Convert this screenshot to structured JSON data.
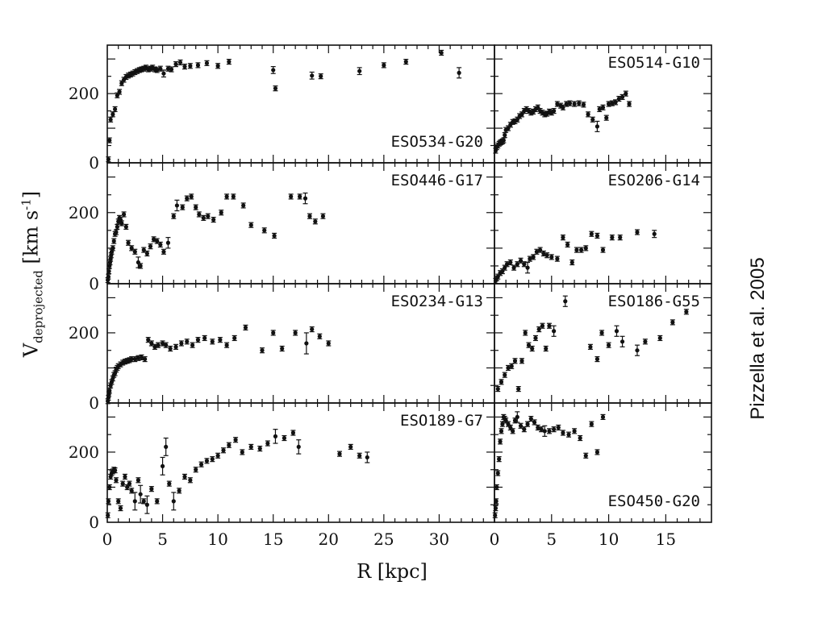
{
  "credit": "Pizzella et al. 2005",
  "axis": {
    "xlabel": "R [kpc]",
    "ylabel_main": "V",
    "ylabel_sub": "deprojected",
    "ylabel_units_a": " [km s",
    "ylabel_units_sup": "-1",
    "ylabel_units_b": "]"
  },
  "chart_data": [
    {
      "type": "scatter",
      "title": "ESO534-G20",
      "xlim": [
        0,
        35
      ],
      "ylim": [
        0,
        340
      ],
      "xticks": [
        0,
        5,
        10,
        15,
        20,
        25,
        30
      ],
      "yticks": [
        0,
        200
      ],
      "x": [
        0.1,
        0.2,
        0.3,
        0.5,
        0.7,
        0.9,
        1.1,
        1.3,
        1.5,
        1.7,
        1.9,
        2.1,
        2.3,
        2.5,
        2.7,
        2.9,
        3.1,
        3.3,
        3.5,
        3.7,
        3.9,
        4.1,
        4.3,
        4.5,
        4.8,
        5.1,
        5.5,
        5.8,
        6.2,
        6.6,
        7.0,
        7.5,
        8.2,
        9.0,
        10.0,
        11.0,
        15.0,
        15.2,
        18.5,
        19.3,
        22.8,
        25.0,
        27.0,
        30.2,
        31.8
      ],
      "y": [
        10,
        65,
        125,
        140,
        155,
        195,
        205,
        230,
        240,
        248,
        252,
        255,
        258,
        262,
        265,
        268,
        270,
        272,
        275,
        270,
        272,
        275,
        270,
        268,
        272,
        258,
        272,
        270,
        285,
        290,
        278,
        280,
        282,
        288,
        280,
        292,
        268,
        215,
        252,
        250,
        265,
        282,
        292,
        318,
        260
      ],
      "err": [
        0,
        0,
        0,
        0,
        0,
        0,
        0,
        0,
        0,
        0,
        0,
        0,
        0,
        0,
        0,
        0,
        0,
        0,
        0,
        0,
        0,
        0,
        0,
        0,
        0,
        10,
        0,
        0,
        0,
        0,
        0,
        0,
        0,
        0,
        0,
        0,
        10,
        0,
        10,
        0,
        10,
        0,
        0,
        0,
        15
      ]
    },
    {
      "type": "scatter",
      "title": "ESO514-G10",
      "xlim": [
        0,
        19
      ],
      "ylim": [
        0,
        340
      ],
      "xticks": [
        0,
        5,
        10,
        15
      ],
      "yticks": [
        0,
        200
      ],
      "x": [
        0.1,
        0.2,
        0.3,
        0.4,
        0.5,
        0.6,
        0.7,
        0.8,
        0.9,
        1.0,
        1.2,
        1.4,
        1.6,
        1.8,
        2.0,
        2.2,
        2.4,
        2.6,
        2.8,
        3.0,
        3.2,
        3.4,
        3.6,
        3.8,
        4.0,
        4.2,
        4.4,
        4.6,
        4.8,
        5.0,
        5.2,
        5.5,
        5.8,
        6.0,
        6.3,
        6.6,
        7.0,
        7.4,
        7.8,
        8.2,
        8.6,
        9.0,
        9.2,
        9.5,
        9.8,
        10.0,
        10.3,
        10.6,
        10.9,
        11.2,
        11.5,
        11.8
      ],
      "y": [
        35,
        45,
        50,
        55,
        58,
        60,
        62,
        65,
        80,
        95,
        100,
        110,
        118,
        120,
        125,
        135,
        140,
        150,
        155,
        150,
        145,
        148,
        155,
        160,
        150,
        145,
        140,
        142,
        148,
        145,
        150,
        170,
        165,
        160,
        170,
        172,
        170,
        172,
        168,
        140,
        125,
        105,
        155,
        160,
        130,
        170,
        172,
        175,
        185,
        190,
        200,
        170
      ],
      "err": [
        0,
        0,
        0,
        0,
        0,
        0,
        0,
        0,
        0,
        0,
        0,
        0,
        0,
        0,
        0,
        0,
        0,
        0,
        0,
        0,
        0,
        0,
        0,
        0,
        0,
        0,
        0,
        0,
        0,
        0,
        0,
        0,
        0,
        0,
        0,
        0,
        0,
        0,
        0,
        0,
        0,
        15,
        0,
        0,
        0,
        0,
        0,
        0,
        0,
        0,
        0,
        0
      ]
    },
    {
      "type": "scatter",
      "title": "ESO446-G17",
      "xlim": [
        0,
        35
      ],
      "ylim": [
        0,
        340
      ],
      "xticks": [
        0,
        5,
        10,
        15,
        20,
        25,
        30
      ],
      "yticks": [
        0,
        200
      ],
      "x": [
        0.05,
        0.1,
        0.15,
        0.2,
        0.25,
        0.3,
        0.35,
        0.4,
        0.5,
        0.6,
        0.7,
        0.8,
        0.9,
        1.0,
        1.1,
        1.2,
        1.3,
        1.5,
        1.7,
        1.9,
        2.2,
        2.5,
        2.8,
        3.0,
        3.3,
        3.6,
        3.9,
        4.2,
        4.5,
        4.8,
        5.1,
        5.5,
        6.0,
        6.3,
        6.8,
        7.2,
        7.6,
        8.0,
        8.3,
        8.7,
        9.1,
        9.6,
        10.3,
        10.8,
        11.4,
        12.3,
        13.0,
        14.2,
        15.1,
        16.6,
        17.4,
        17.9,
        18.3,
        18.8,
        19.5
      ],
      "y": [
        10,
        20,
        35,
        50,
        60,
        70,
        80,
        90,
        100,
        120,
        140,
        145,
        160,
        175,
        185,
        180,
        170,
        195,
        160,
        115,
        100,
        90,
        60,
        50,
        95,
        85,
        105,
        125,
        120,
        110,
        90,
        115,
        190,
        220,
        215,
        240,
        245,
        215,
        195,
        185,
        190,
        180,
        200,
        245,
        245,
        220,
        165,
        150,
        135,
        245,
        245,
        240,
        190,
        175,
        190
      ],
      "err": [
        0,
        0,
        0,
        0,
        0,
        0,
        0,
        0,
        0,
        0,
        0,
        0,
        0,
        0,
        0,
        0,
        0,
        0,
        0,
        0,
        0,
        0,
        15,
        0,
        0,
        0,
        0,
        0,
        0,
        0,
        0,
        15,
        0,
        15,
        0,
        0,
        0,
        0,
        0,
        0,
        0,
        0,
        0,
        0,
        0,
        0,
        0,
        0,
        0,
        0,
        0,
        15,
        0,
        0,
        0
      ]
    },
    {
      "type": "scatter",
      "title": "ESO206-G14",
      "xlim": [
        0,
        19
      ],
      "ylim": [
        0,
        340
      ],
      "xticks": [
        0,
        5,
        10,
        15
      ],
      "yticks": [
        0,
        200
      ],
      "x": [
        0.1,
        0.2,
        0.3,
        0.5,
        0.7,
        0.9,
        1.1,
        1.4,
        1.7,
        2.0,
        2.3,
        2.6,
        2.9,
        3.1,
        3.4,
        3.7,
        4.0,
        4.3,
        4.6,
        5.0,
        5.5,
        6.0,
        6.4,
        6.8,
        7.2,
        7.6,
        8.0,
        8.5,
        9.0,
        9.5,
        10.3,
        11.0,
        12.5,
        14.0
      ],
      "y": [
        8,
        15,
        20,
        30,
        35,
        45,
        55,
        60,
        45,
        55,
        65,
        55,
        45,
        70,
        75,
        90,
        95,
        85,
        80,
        75,
        70,
        130,
        110,
        60,
        95,
        95,
        100,
        140,
        135,
        95,
        130,
        130,
        145,
        140
      ],
      "err": [
        0,
        0,
        0,
        0,
        0,
        0,
        0,
        0,
        0,
        0,
        0,
        0,
        15,
        0,
        0,
        0,
        0,
        0,
        0,
        0,
        0,
        0,
        0,
        0,
        0,
        0,
        0,
        0,
        0,
        0,
        0,
        0,
        0,
        10
      ]
    },
    {
      "type": "scatter",
      "title": "ESO234-G13",
      "xlim": [
        0,
        35
      ],
      "ylim": [
        0,
        340
      ],
      "xticks": [
        0,
        5,
        10,
        15,
        20,
        25,
        30
      ],
      "yticks": [
        0,
        200
      ],
      "x": [
        0.05,
        0.1,
        0.15,
        0.2,
        0.3,
        0.4,
        0.5,
        0.6,
        0.7,
        0.8,
        0.9,
        1.0,
        1.2,
        1.4,
        1.6,
        1.8,
        2.0,
        2.2,
        2.5,
        2.8,
        3.1,
        3.4,
        3.7,
        4.0,
        4.3,
        4.6,
        5.0,
        5.3,
        5.7,
        6.2,
        6.7,
        7.2,
        7.7,
        8.2,
        8.8,
        9.5,
        10.2,
        10.8,
        11.5,
        12.5,
        14.0,
        15.0,
        15.8,
        17.0,
        18.0,
        18.5,
        19.2,
        20.0
      ],
      "y": [
        5,
        15,
        25,
        35,
        50,
        60,
        70,
        80,
        85,
        95,
        100,
        105,
        110,
        115,
        118,
        120,
        122,
        125,
        125,
        128,
        130,
        125,
        180,
        170,
        160,
        165,
        170,
        165,
        155,
        160,
        170,
        175,
        165,
        180,
        185,
        175,
        180,
        165,
        185,
        215,
        150,
        200,
        155,
        200,
        170,
        210,
        190,
        170
      ],
      "err": [
        0,
        0,
        0,
        0,
        0,
        0,
        0,
        0,
        0,
        0,
        0,
        0,
        0,
        0,
        0,
        0,
        0,
        0,
        0,
        0,
        0,
        0,
        0,
        0,
        0,
        0,
        0,
        0,
        0,
        0,
        0,
        0,
        0,
        0,
        0,
        0,
        0,
        0,
        0,
        0,
        0,
        0,
        0,
        0,
        30,
        0,
        0,
        0
      ]
    },
    {
      "type": "scatter",
      "title": "ESO186-G55",
      "xlim": [
        0,
        19
      ],
      "ylim": [
        0,
        340
      ],
      "xticks": [
        0,
        5,
        10,
        15
      ],
      "yticks": [
        0,
        200
      ],
      "x": [
        0.3,
        0.6,
        0.9,
        1.2,
        1.5,
        1.8,
        2.1,
        2.4,
        2.7,
        3.0,
        3.3,
        3.6,
        3.9,
        4.2,
        4.5,
        4.8,
        5.2,
        6.2,
        8.4,
        9.0,
        9.4,
        10.0,
        10.7,
        11.2,
        12.5,
        13.2,
        14.5,
        15.6,
        16.8
      ],
      "y": [
        40,
        60,
        80,
        100,
        105,
        120,
        40,
        120,
        200,
        165,
        155,
        185,
        210,
        220,
        155,
        220,
        205,
        290,
        160,
        125,
        200,
        165,
        205,
        175,
        150,
        175,
        185,
        230,
        260
      ],
      "err": [
        0,
        0,
        0,
        0,
        0,
        0,
        0,
        0,
        0,
        0,
        0,
        0,
        0,
        0,
        0,
        0,
        15,
        15,
        0,
        0,
        0,
        0,
        15,
        15,
        15,
        0,
        0,
        0,
        0
      ]
    },
    {
      "type": "scatter",
      "title": "ESO189-G7",
      "xlim": [
        0,
        35
      ],
      "ylim": [
        0,
        340
      ],
      "xticks": [
        0,
        5,
        10,
        15,
        20,
        25,
        30
      ],
      "yticks": [
        0,
        200
      ],
      "x": [
        0.05,
        0.1,
        0.2,
        0.3,
        0.4,
        0.5,
        0.6,
        0.7,
        0.8,
        1.0,
        1.2,
        1.4,
        1.6,
        1.8,
        2.0,
        2.2,
        2.5,
        2.8,
        3.0,
        3.3,
        3.6,
        4.0,
        4.5,
        5.0,
        5.3,
        5.6,
        6.0,
        6.5,
        7.0,
        7.5,
        8.0,
        8.5,
        9.0,
        9.5,
        10.0,
        10.5,
        11.0,
        11.6,
        12.2,
        13.0,
        13.8,
        14.5,
        15.2,
        16.0,
        16.8,
        17.3,
        21.0,
        22.0,
        22.8,
        23.5
      ],
      "y": [
        20,
        60,
        100,
        130,
        140,
        145,
        150,
        148,
        120,
        60,
        40,
        110,
        130,
        100,
        110,
        90,
        60,
        120,
        80,
        60,
        50,
        95,
        60,
        160,
        215,
        110,
        60,
        90,
        130,
        120,
        150,
        165,
        175,
        180,
        190,
        205,
        220,
        235,
        200,
        215,
        210,
        225,
        245,
        240,
        255,
        215,
        195,
        215,
        190,
        185
      ],
      "err": [
        0,
        0,
        0,
        0,
        0,
        0,
        0,
        0,
        0,
        0,
        0,
        0,
        0,
        0,
        0,
        0,
        25,
        0,
        25,
        0,
        25,
        0,
        0,
        25,
        25,
        0,
        25,
        0,
        0,
        0,
        0,
        0,
        0,
        0,
        0,
        0,
        0,
        0,
        0,
        0,
        0,
        0,
        20,
        0,
        0,
        20,
        0,
        0,
        0,
        15
      ]
    },
    {
      "type": "scatter",
      "title": "ESO450-G20",
      "xlim": [
        0,
        19
      ],
      "ylim": [
        0,
        340
      ],
      "xticks": [
        0,
        5,
        10,
        15
      ],
      "yticks": [
        0,
        200
      ],
      "x": [
        0.05,
        0.1,
        0.15,
        0.2,
        0.3,
        0.4,
        0.5,
        0.6,
        0.7,
        0.8,
        0.9,
        1.0,
        1.2,
        1.4,
        1.6,
        1.8,
        2.0,
        2.3,
        2.6,
        2.9,
        3.2,
        3.5,
        3.8,
        4.1,
        4.4,
        4.8,
        5.2,
        5.6,
        6.0,
        6.5,
        7.0,
        7.5,
        8.0,
        8.5,
        9.0,
        9.5
      ],
      "y": [
        20,
        40,
        60,
        100,
        140,
        180,
        230,
        260,
        280,
        300,
        295,
        290,
        280,
        270,
        260,
        290,
        300,
        275,
        265,
        280,
        295,
        285,
        270,
        265,
        260,
        260,
        265,
        270,
        255,
        250,
        260,
        240,
        190,
        280,
        200,
        300
      ],
      "err": [
        0,
        0,
        0,
        0,
        0,
        0,
        0,
        0,
        0,
        0,
        0,
        0,
        0,
        0,
        0,
        0,
        15,
        0,
        0,
        0,
        0,
        0,
        0,
        0,
        15,
        0,
        0,
        0,
        0,
        0,
        0,
        0,
        0,
        0,
        0,
        0
      ]
    }
  ]
}
